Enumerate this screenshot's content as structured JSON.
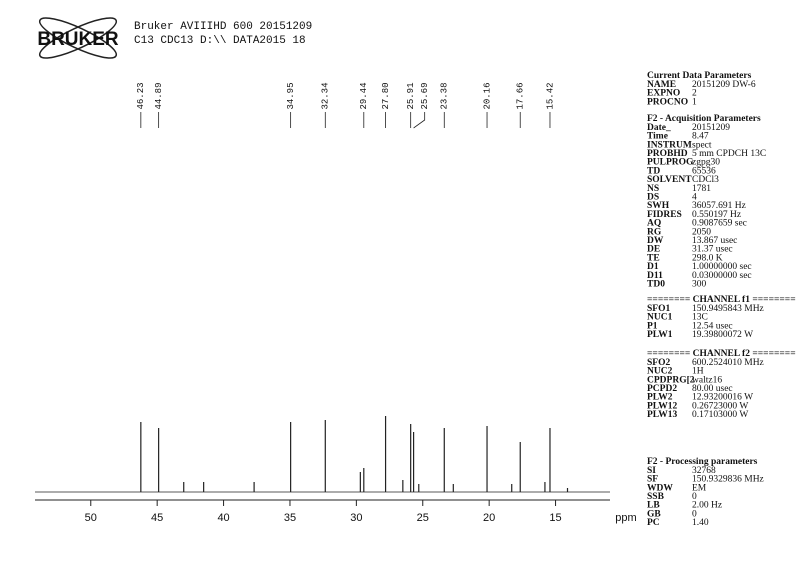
{
  "header": {
    "logo": "BRUKER",
    "line1": "Bruker AVIIIHD 600 20151209",
    "line2": "C13 CDC13 D:\\\\ DATA2015 18"
  },
  "chart_data": {
    "type": "nmr",
    "x": [
      46.23,
      44.89,
      43.0,
      41.5,
      37.7,
      34.95,
      32.34,
      29.7,
      29.44,
      27.8,
      26.5,
      25.91,
      25.69,
      25.3,
      23.38,
      22.7,
      20.16,
      18.3,
      17.66,
      15.8,
      15.42,
      14.1
    ],
    "values": [
      70,
      64,
      10,
      10,
      10,
      70,
      72,
      20,
      24,
      76,
      12,
      68,
      60,
      8,
      64,
      8,
      66,
      8,
      50,
      10,
      64,
      4
    ],
    "color": "#222",
    "peak_labels": [
      {
        "value": 46.23,
        "label": "46.23"
      },
      {
        "value": 44.89,
        "label": "44.89"
      },
      {
        "value": 34.95,
        "label": "34.95"
      },
      {
        "value": 32.34,
        "label": "32.34"
      },
      {
        "value": 29.44,
        "label": "29.44"
      },
      {
        "value": 27.8,
        "label": "27.80"
      },
      {
        "value": 25.91,
        "label": "25.91"
      },
      {
        "value": 25.69,
        "label": "25.69"
      },
      {
        "value": 23.38,
        "label": "23.38"
      },
      {
        "value": 20.16,
        "label": "20.16"
      },
      {
        "value": 17.66,
        "label": "17.66"
      },
      {
        "value": 15.42,
        "label": "15.42"
      }
    ],
    "xlim": [
      54.2,
      10.9
    ],
    "ylim": [
      0,
      80
    ],
    "xticks": [
      50,
      45,
      40,
      35,
      30,
      25,
      20,
      15
    ],
    "x_label": "ppm"
  },
  "parameters": [
    {
      "title": "Current Data Parameters",
      "rows": [
        [
          "NAME",
          "20151209 DW-6"
        ],
        [
          "EXPNO",
          "2"
        ],
        [
          "PROCNO",
          "1"
        ]
      ]
    },
    {
      "title": "F2 - Acquisition Parameters",
      "rows": [
        [
          "Date_",
          "20151209"
        ],
        [
          "Time",
          "8.47"
        ],
        [
          "INSTRUM",
          "spect"
        ],
        [
          "PROBHD",
          "5 mm CPDCH 13C"
        ],
        [
          "PULPROG",
          "zgpg30"
        ],
        [
          "TD",
          "65536"
        ],
        [
          "SOLVENT",
          "CDCl3"
        ],
        [
          "NS",
          "1781"
        ],
        [
          "DS",
          "4"
        ],
        [
          "SWH",
          "36057.691 Hz"
        ],
        [
          "FIDRES",
          "0.550197 Hz"
        ],
        [
          "AQ",
          "0.9087659 sec"
        ],
        [
          "RG",
          "2050"
        ],
        [
          "DW",
          "13.867 usec"
        ],
        [
          "DE",
          "31.37 usec"
        ],
        [
          "TE",
          "298.0 K"
        ],
        [
          "D1",
          "1.00000000 sec"
        ],
        [
          "D11",
          "0.03000000 sec"
        ],
        [
          "TD0",
          "300"
        ]
      ]
    },
    {
      "title": "======== CHANNEL f1 ========",
      "rows": [
        [
          "SFO1",
          "150.9495843 MHz"
        ],
        [
          "NUC1",
          "13C"
        ],
        [
          "P1",
          "12.54 usec"
        ],
        [
          "PLW1",
          "19.39800072 W"
        ]
      ]
    },
    {
      "title": "======== CHANNEL f2 ========",
      "rows": [
        [
          "SFO2",
          "600.2524010 MHz"
        ],
        [
          "NUC2",
          "1H"
        ],
        [
          "CPDPRG[2",
          "waltz16"
        ],
        [
          "PCPD2",
          "80.00 usec"
        ],
        [
          "PLW2",
          "12.93200016 W"
        ],
        [
          "PLW12",
          "0.26723000 W"
        ],
        [
          "PLW13",
          "0.17103000 W"
        ]
      ]
    },
    {
      "title": "F2 - Processing parameters",
      "rows": [
        [
          "SI",
          "32768"
        ],
        [
          "SF",
          "150.9329836 MHz"
        ],
        [
          "WDW",
          "EM"
        ],
        [
          "SSB",
          "0"
        ],
        [
          "LB",
          "2.00 Hz"
        ],
        [
          "GB",
          "0"
        ],
        [
          "PC",
          "1.40"
        ]
      ]
    }
  ]
}
